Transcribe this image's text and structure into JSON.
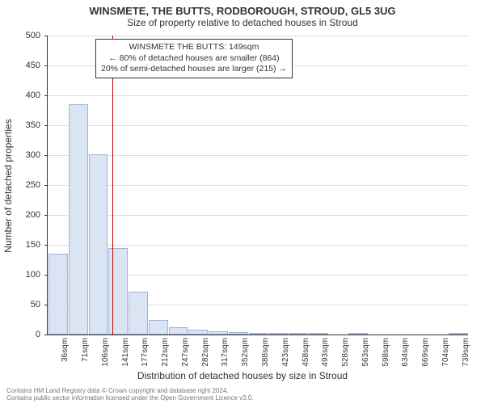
{
  "title": "WINSMETE, THE BUTTS, RODBOROUGH, STROUD, GL5 3UG",
  "subtitle": "Size of property relative to detached houses in Stroud",
  "ylabel": "Number of detached properties",
  "xlabel": "Distribution of detached houses by size in Stroud",
  "chart": {
    "type": "histogram",
    "ylim": [
      0,
      500
    ],
    "ytick_step": 50,
    "bar_fill": "#dbe4f3",
    "bar_border": "#9fb4d8",
    "grid_color": "#dddddd",
    "axis_color": "#333333",
    "background_color": "#ffffff",
    "ref_line_color": "#cc0000",
    "ref_line_value": 149,
    "categories": [
      "36sqm",
      "71sqm",
      "106sqm",
      "141sqm",
      "177sqm",
      "212sqm",
      "247sqm",
      "282sqm",
      "317sqm",
      "352sqm",
      "388sqm",
      "423sqm",
      "458sqm",
      "493sqm",
      "528sqm",
      "563sqm",
      "598sqm",
      "634sqm",
      "669sqm",
      "704sqm",
      "739sqm"
    ],
    "values": [
      135,
      385,
      302,
      145,
      72,
      25,
      12,
      8,
      6,
      4,
      3,
      2,
      1,
      1,
      0,
      1,
      0,
      0,
      0,
      0,
      1
    ],
    "label_fontsize": 11,
    "tick_fontsize": 10
  },
  "annotation": {
    "line1": "WINSMETE THE BUTTS: 149sqm",
    "line2": "← 80% of detached houses are smaller (864)",
    "line3": "20% of semi-detached houses are larger (215) →"
  },
  "footer": {
    "line1": "Contains HM Land Registry data © Crown copyright and database right 2024.",
    "line2": "Contains public sector information licensed under the Open Government Licence v3.0."
  }
}
